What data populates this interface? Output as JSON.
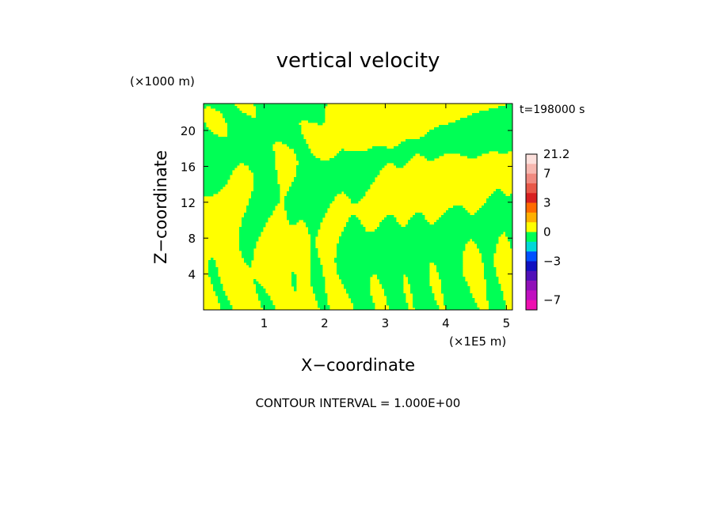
{
  "chart_data": {
    "type": "heatmap",
    "title": "vertical velocity",
    "xlabel": "X−coordinate",
    "ylabel": "Z−coordinate",
    "x_unit": "(×1E5 m)",
    "y_unit": "(×1000 m)",
    "time_label": "t=198000 s",
    "footer": "CONTOUR INTERVAL = 1.000E+00",
    "xlim": [
      0,
      5.1
    ],
    "ylim": [
      0,
      23
    ],
    "x_ticks": [
      1,
      2,
      3,
      4,
      5
    ],
    "y_ticks": [
      4,
      8,
      12,
      16,
      20
    ],
    "field_levels": {
      "positive": {
        "range": [
          0,
          1
        ],
        "color": "#ffff00"
      },
      "negative": {
        "range": [
          -1,
          0
        ],
        "color": "#00ff55"
      }
    },
    "colorbar": {
      "labels": [
        "21.2",
        "7",
        "3",
        "0",
        "−3",
        "−7"
      ],
      "label_values": [
        21.2,
        7,
        3,
        0,
        -3,
        -7
      ],
      "segments": [
        {
          "from": 7,
          "to": 21.2,
          "color": "#fce0dc"
        },
        {
          "from": 7,
          "to": 21.2,
          "color": "#f7b8b0"
        },
        {
          "from": 5,
          "to": 7,
          "color": "#f08a80"
        },
        {
          "from": 4,
          "to": 5,
          "color": "#e85848"
        },
        {
          "from": 3,
          "to": 4,
          "color": "#d82020"
        },
        {
          "from": 2,
          "to": 3,
          "color": "#ff6a00"
        },
        {
          "from": 1,
          "to": 2,
          "color": "#ffb000"
        },
        {
          "from": 0,
          "to": 1,
          "color": "#ffff00"
        },
        {
          "from": -1,
          "to": 0,
          "color": "#00ff55"
        },
        {
          "from": -2,
          "to": -1,
          "color": "#00d8d8"
        },
        {
          "from": -3,
          "to": -2,
          "color": "#0050ff"
        },
        {
          "from": -4,
          "to": -3,
          "color": "#1010c0"
        },
        {
          "from": -5,
          "to": -4,
          "color": "#5010b8"
        },
        {
          "from": -6,
          "to": -5,
          "color": "#9010b8"
        },
        {
          "from": -7,
          "to": -6,
          "color": "#c010c0"
        },
        {
          "from": -11,
          "to": -7,
          "color": "#ee10b0"
        }
      ]
    }
  }
}
